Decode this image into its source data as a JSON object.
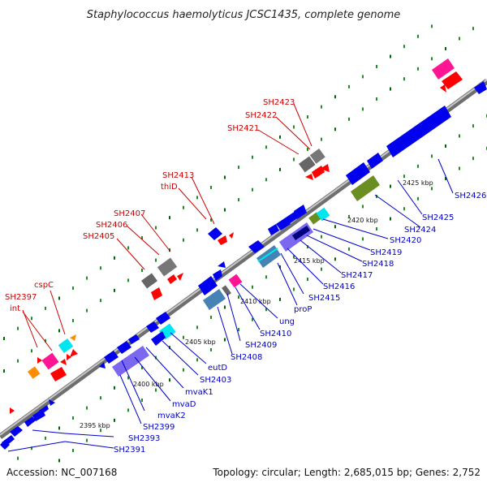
{
  "title": "Staphylococcus haemolyticus JCSC1435, complete genome",
  "footer": {
    "accession": "Accession: NC_007168",
    "summary": "Topology: circular; Length: 2,685,015 bp; Genes: 2,752"
  },
  "colors": {
    "backbone": "#8a8a8a",
    "label_blue": "#0000cc",
    "label_red": "#cc0000",
    "gene_blue": "#0000ee",
    "gene_red": "#ff0000",
    "gene_gray": "#666666",
    "gene_cyan": "#00e5ee",
    "gene_magenta": "#ff1493",
    "gene_purple": "#7b68ee",
    "gene_olive": "#6b8e23",
    "gene_steel": "#4682b4",
    "gene_orange": "#ff8c00",
    "tick_green": "#228b22"
  },
  "kbp_labels": [
    "2395 kbp",
    "2400 kbp",
    "2405 kbp",
    "2410 kbp",
    "2415 kbp",
    "2420 kbp",
    "2425 kbp"
  ],
  "red_labels": [
    "SH2397",
    "int",
    "cspC",
    "SH2405",
    "SH2406",
    "SH2407",
    "SH2413",
    "thiD",
    "SH2421",
    "SH2422",
    "SH2423"
  ],
  "blue_labels": [
    "SH2391",
    "SH2393",
    "SH2399",
    "mvaK2",
    "mvaD",
    "mvaK1",
    "SH2403",
    "eutD",
    "SH2408",
    "SH2409",
    "SH2410",
    "ung",
    "proP",
    "SH2415",
    "SH2416",
    "SH2417",
    "SH2418",
    "SH2419",
    "SH2420",
    "SH2424",
    "SH2425",
    "SH2426"
  ]
}
